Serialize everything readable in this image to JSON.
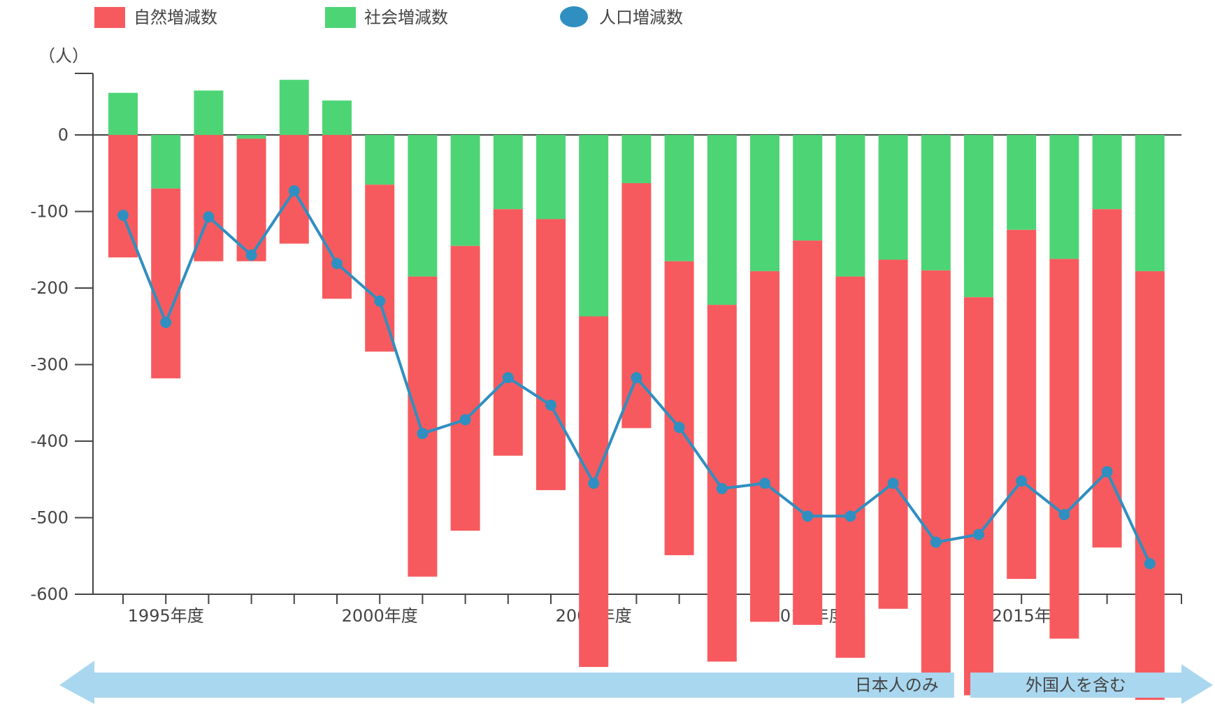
{
  "chart_data": {
    "type": "bar",
    "ylabel": "（人）",
    "ylim": [
      -600,
      80
    ],
    "yticks": [
      0,
      -100,
      -200,
      -300,
      -400,
      -500,
      -600
    ],
    "categories": [
      "1994",
      "1995",
      "1996",
      "1997",
      "1998",
      "1999",
      "2000",
      "2001",
      "2002",
      "2003",
      "2004",
      "2005",
      "2006",
      "2007",
      "2008",
      "2009",
      "2010",
      "2011",
      "2012",
      "2013",
      "2014",
      "2015",
      "2016",
      "2017",
      "2018"
    ],
    "x_labels": [
      {
        "category": "1995",
        "label": "1995年度"
      },
      {
        "category": "2000",
        "label": "2000年度"
      },
      {
        "category": "2005",
        "label": "2005年度"
      },
      {
        "category": "2010",
        "label": "2010年度"
      },
      {
        "category": "2015",
        "label": "2015年"
      }
    ],
    "series": [
      {
        "name": "自然増減数",
        "kind": "bar",
        "color": "#f75a5e",
        "values": [
          -160,
          -248,
          -165,
          -160,
          -142,
          -214,
          -218,
          -392,
          -372,
          -322,
          -354,
          -458,
          -320,
          -384,
          -466,
          -458,
          -502,
          -498,
          -456,
          -530,
          -520,
          -456,
          -496,
          -442,
          -560
        ]
      },
      {
        "name": "社会増減数",
        "kind": "bar",
        "color": "#4dd575",
        "values": [
          55,
          -70,
          58,
          -5,
          72,
          45,
          -65,
          -185,
          -145,
          -97,
          -110,
          -237,
          -63,
          -165,
          -222,
          -178,
          -138,
          -185,
          -163,
          -177,
          -212,
          -124,
          -162,
          -97,
          -178
        ]
      },
      {
        "name": "人口増減数",
        "kind": "line",
        "color": "#2f8fc0",
        "values": [
          -105,
          -245,
          -107,
          -157,
          -73,
          -168,
          -217,
          -390,
          -372,
          -317,
          -353,
          -455,
          -317,
          -382,
          -462,
          -455,
          -498,
          -498,
          -455,
          -532,
          -522,
          -452,
          -496,
          -440,
          -560
        ]
      }
    ],
    "legend": {
      "position": "top-left"
    },
    "grid": false,
    "bands": [
      {
        "label": "日本人のみ",
        "from": "1994",
        "to": "2013"
      },
      {
        "label": "外国人を含む",
        "from": "2014",
        "to": "2018"
      }
    ]
  }
}
